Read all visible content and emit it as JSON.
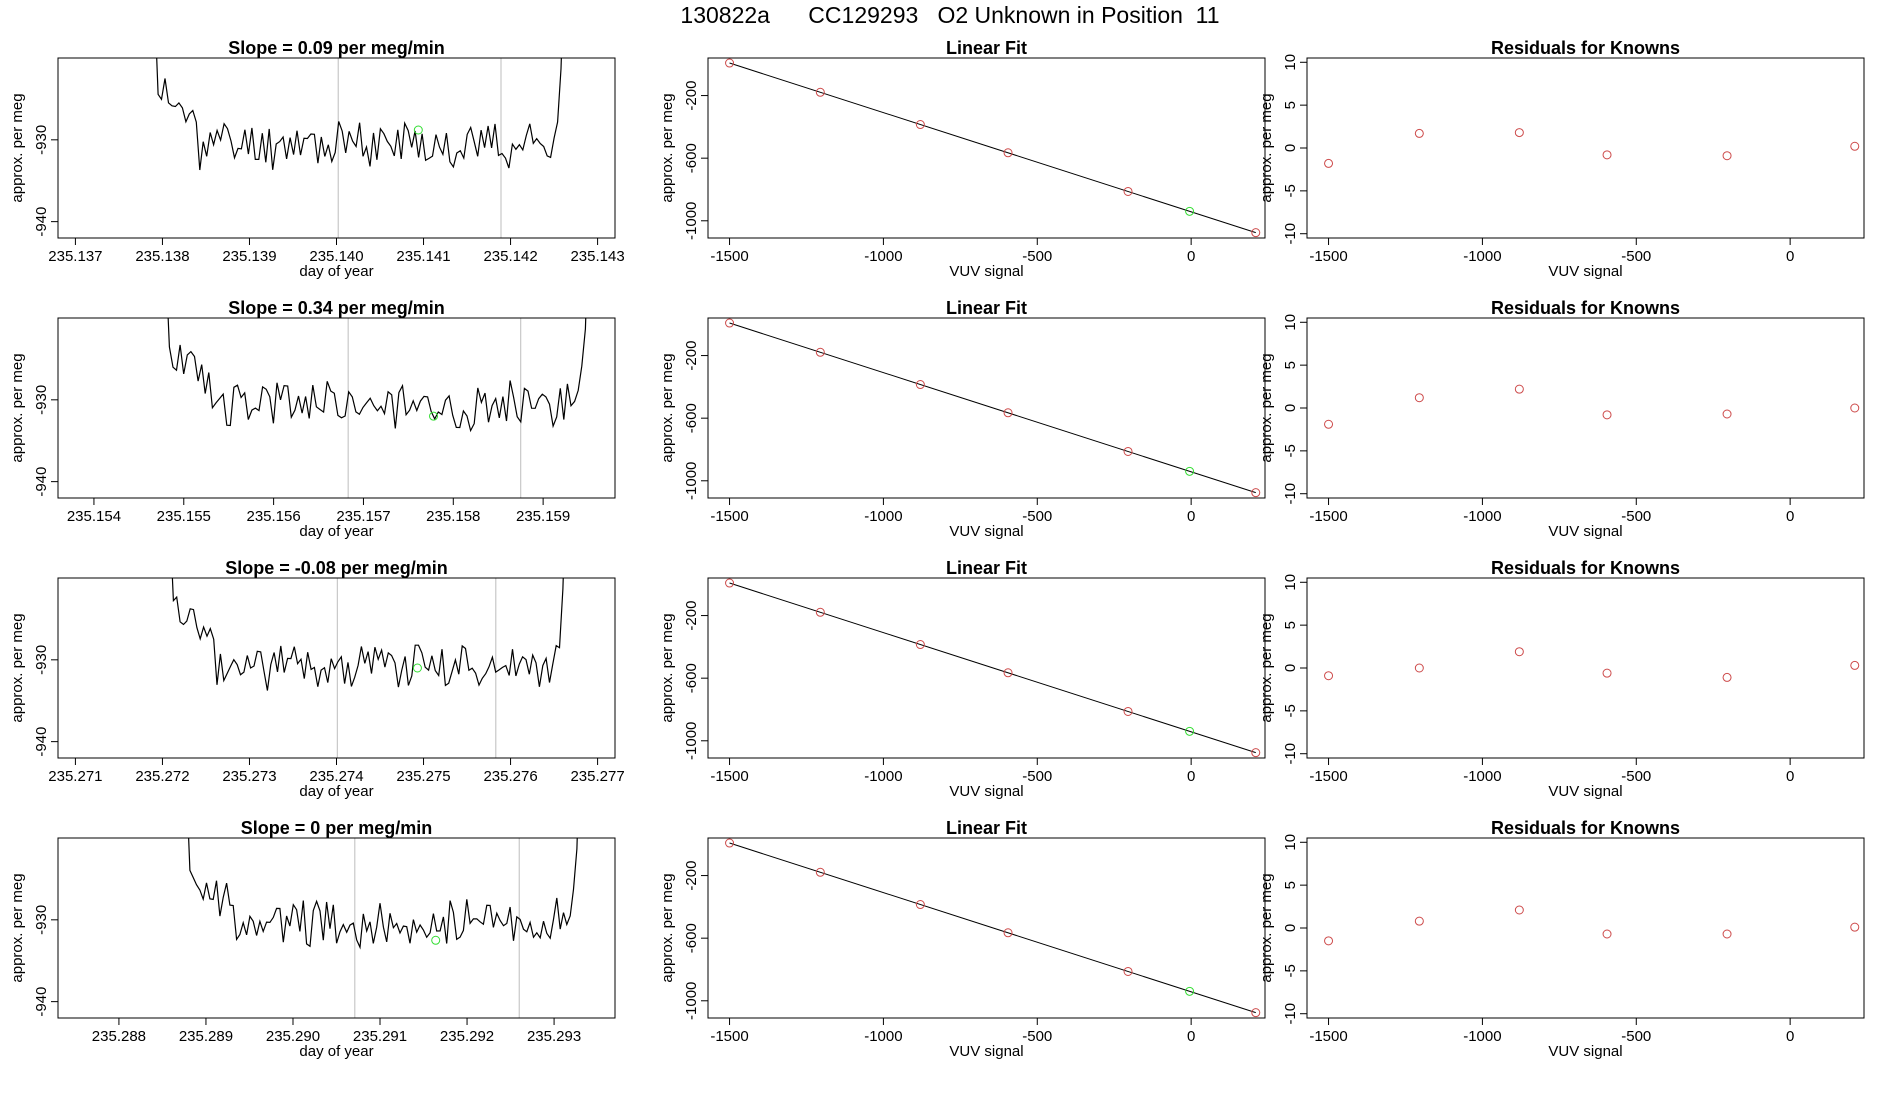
{
  "title": "130822a      CC129293   O2 Unknown in Position  11",
  "colors": {
    "line": "#000000",
    "known_point": "#cd4a4a",
    "unknown_point": "#33dd33",
    "vline": "#c8c8c8"
  },
  "chart_data": [
    {
      "type": "line",
      "panel": "time-series",
      "title": "Slope =  0.09  per meg/min",
      "xlabel": "day of year",
      "ylabel": "approx. per meg",
      "xlim": [
        235.1368,
        235.1432
      ],
      "ylim": [
        -942,
        -920
      ],
      "xticks": [
        "235.137",
        "235.138",
        "235.139",
        "235.140",
        "235.141",
        "235.142",
        "235.143"
      ],
      "xtick_values": [
        235.137,
        235.138,
        235.139,
        235.14,
        235.141,
        235.142,
        235.143
      ],
      "yticks": [
        "-930",
        "-940"
      ],
      "ytick_values": [
        -930,
        -940
      ],
      "series_start": 235.13783,
      "series_end": 235.14262,
      "trace_seed": 11,
      "vlines": [
        235.14002,
        235.14189
      ],
      "unknown_point": {
        "x": 235.14094,
        "y": -928.8
      }
    },
    {
      "type": "scatter",
      "panel": "linear-fit",
      "title": "Linear Fit",
      "xlabel": "VUV signal",
      "ylabel": "approx. per meg",
      "xlim": [
        -1570,
        240
      ],
      "ylim": [
        -1110,
        40
      ],
      "xticks": [
        "-1500",
        "-1000",
        "-500",
        "0"
      ],
      "xtick_values": [
        -1500,
        -1000,
        -500,
        0
      ],
      "yticks": [
        "-200",
        "-600",
        "-1000"
      ],
      "ytick_values": [
        -200,
        -600,
        -1000
      ],
      "known_x": [
        -1500,
        -1205,
        -880,
        -595,
        -205,
        210
      ],
      "known_y": [
        0,
        -180,
        -380,
        -560,
        -800,
        -1090
      ],
      "unknown": {
        "x": -5,
        "y": -930
      }
    },
    {
      "type": "scatter",
      "panel": "residuals",
      "title": "Residuals for Knowns",
      "xlabel": "VUV signal",
      "ylabel": "approx. per meg",
      "xlim": [
        -1570,
        240
      ],
      "ylim": [
        -10.5,
        10.5
      ],
      "xticks": [
        "-1500",
        "-1000",
        "-500",
        "0"
      ],
      "xtick_values": [
        -1500,
        -1000,
        -500,
        0
      ],
      "yticks": [
        "-10",
        "-5",
        "0",
        "5",
        "10"
      ],
      "ytick_values": [
        -10,
        -5,
        0,
        5,
        10
      ],
      "x": [
        -1500,
        -1205,
        -880,
        -595,
        -205,
        210
      ],
      "y": [
        -1.8,
        1.7,
        1.8,
        -0.8,
        -0.9,
        0.2
      ]
    },
    {
      "type": "line",
      "panel": "time-series",
      "title": "Slope =  0.34  per meg/min",
      "xlabel": "day of year",
      "ylabel": "approx. per meg",
      "xlim": [
        235.1536,
        235.1598
      ],
      "ylim": [
        -942,
        -920
      ],
      "xticks": [
        "235.154",
        "235.155",
        "235.156",
        "235.157",
        "235.158",
        "235.159"
      ],
      "xtick_values": [
        235.154,
        235.155,
        235.156,
        235.157,
        235.158,
        235.159
      ],
      "yticks": [
        "-930",
        "-940"
      ],
      "ytick_values": [
        -930,
        -940
      ],
      "series_start": 235.15472,
      "series_end": 235.15951,
      "trace_seed": 23,
      "vlines": [
        235.15683,
        235.15875
      ],
      "unknown_point": {
        "x": 235.15778,
        "y": -932
      }
    },
    {
      "type": "scatter",
      "panel": "linear-fit",
      "title": "Linear Fit",
      "xlabel": "VUV signal",
      "ylabel": "approx. per meg",
      "xlim": [
        -1570,
        240
      ],
      "ylim": [
        -1110,
        40
      ],
      "xticks": [
        "-1500",
        "-1000",
        "-500",
        "0"
      ],
      "xtick_values": [
        -1500,
        -1000,
        -500,
        0
      ],
      "yticks": [
        "-200",
        "-600",
        "-1000"
      ],
      "ytick_values": [
        -200,
        -600,
        -1000
      ],
      "known_x": [
        -1500,
        -1205,
        -880,
        -595,
        -205,
        210
      ],
      "known_y": [
        0,
        -180,
        -380,
        -560,
        -800,
        -1090
      ],
      "unknown": {
        "x": -5,
        "y": -930
      }
    },
    {
      "type": "scatter",
      "panel": "residuals",
      "title": "Residuals for Knowns",
      "xlabel": "VUV signal",
      "ylabel": "approx. per meg",
      "xlim": [
        -1570,
        240
      ],
      "ylim": [
        -10.5,
        10.5
      ],
      "xticks": [
        "-1500",
        "-1000",
        "-500",
        "0"
      ],
      "xtick_values": [
        -1500,
        -1000,
        -500,
        0
      ],
      "yticks": [
        "-10",
        "-5",
        "0",
        "5",
        "10"
      ],
      "ytick_values": [
        -10,
        -5,
        0,
        5,
        10
      ],
      "x": [
        -1500,
        -1205,
        -880,
        -595,
        -205,
        210
      ],
      "y": [
        -1.9,
        1.2,
        2.2,
        -0.8,
        -0.7,
        0.0
      ]
    },
    {
      "type": "line",
      "panel": "time-series",
      "title": "Slope =  -0.08  per meg/min",
      "xlabel": "day of year",
      "ylabel": "approx. per meg",
      "xlim": [
        235.2708,
        235.2772
      ],
      "ylim": [
        -942,
        -920
      ],
      "xticks": [
        "235.271",
        "235.272",
        "235.273",
        "235.274",
        "235.275",
        "235.276",
        "235.277"
      ],
      "xtick_values": [
        235.271,
        235.272,
        235.273,
        235.274,
        235.275,
        235.276,
        235.277
      ],
      "yticks": [
        "-930",
        "-940"
      ],
      "ytick_values": [
        -930,
        -940
      ],
      "series_start": 235.27201,
      "series_end": 235.27664,
      "trace_seed": 37,
      "vlines": [
        235.27401,
        235.27583
      ],
      "unknown_point": {
        "x": 235.27493,
        "y": -931
      }
    },
    {
      "type": "scatter",
      "panel": "linear-fit",
      "title": "Linear Fit",
      "xlabel": "VUV signal",
      "ylabel": "approx. per meg",
      "xlim": [
        -1570,
        240
      ],
      "ylim": [
        -1110,
        40
      ],
      "xticks": [
        "-1500",
        "-1000",
        "-500",
        "0"
      ],
      "xtick_values": [
        -1500,
        -1000,
        -500,
        0
      ],
      "yticks": [
        "-200",
        "-600",
        "-1000"
      ],
      "ytick_values": [
        -200,
        -600,
        -1000
      ],
      "known_x": [
        -1500,
        -1205,
        -880,
        -595,
        -205,
        210
      ],
      "known_y": [
        0,
        -180,
        -380,
        -560,
        -800,
        -1090
      ],
      "unknown": {
        "x": -5,
        "y": -930
      }
    },
    {
      "type": "scatter",
      "panel": "residuals",
      "title": "Residuals for Knowns",
      "xlabel": "VUV signal",
      "ylabel": "approx. per meg",
      "xlim": [
        -1570,
        240
      ],
      "ylim": [
        -10.5,
        10.5
      ],
      "xticks": [
        "-1500",
        "-1000",
        "-500",
        "0"
      ],
      "xtick_values": [
        -1500,
        -1000,
        -500,
        0
      ],
      "yticks": [
        "-10",
        "-5",
        "0",
        "5",
        "10"
      ],
      "ytick_values": [
        -10,
        -5,
        0,
        5,
        10
      ],
      "x": [
        -1500,
        -1205,
        -880,
        -595,
        -205,
        210
      ],
      "y": [
        -0.9,
        0.0,
        1.9,
        -0.6,
        -1.1,
        0.3
      ]
    },
    {
      "type": "line",
      "panel": "time-series",
      "title": "Slope =  0  per meg/min",
      "xlabel": "day of year",
      "ylabel": "approx. per meg",
      "xlim": [
        235.2873,
        235.2937
      ],
      "ylim": [
        -942,
        -920
      ],
      "xticks": [
        "235.288",
        "235.289",
        "235.290",
        "235.291",
        "235.292",
        "235.293"
      ],
      "xtick_values": [
        235.288,
        235.289,
        235.29,
        235.291,
        235.292,
        235.293
      ],
      "yticks": [
        "-930",
        "-940"
      ],
      "ytick_values": [
        -930,
        -940
      ],
      "series_start": 235.2887,
      "series_end": 235.2933,
      "trace_seed": 53,
      "vlines": [
        235.29071,
        235.2926
      ],
      "unknown_point": {
        "x": 235.29164,
        "y": -932.5
      }
    },
    {
      "type": "scatter",
      "panel": "linear-fit",
      "title": "Linear Fit",
      "xlabel": "VUV signal",
      "ylabel": "approx. per meg",
      "xlim": [
        -1570,
        240
      ],
      "ylim": [
        -1110,
        40
      ],
      "xticks": [
        "-1500",
        "-1000",
        "-500",
        "0"
      ],
      "xtick_values": [
        -1500,
        -1000,
        -500,
        0
      ],
      "yticks": [
        "-200",
        "-600",
        "-1000"
      ],
      "ytick_values": [
        -200,
        -600,
        -1000
      ],
      "known_x": [
        -1500,
        -1205,
        -880,
        -595,
        -205,
        210
      ],
      "known_y": [
        0,
        -180,
        -380,
        -560,
        -800,
        -1090
      ],
      "unknown": {
        "x": -5,
        "y": -930
      }
    },
    {
      "type": "scatter",
      "panel": "residuals",
      "title": "Residuals for Knowns",
      "xlabel": "VUV signal",
      "ylabel": "approx. per meg",
      "xlim": [
        -1570,
        240
      ],
      "ylim": [
        -10.5,
        10.5
      ],
      "xticks": [
        "-1500",
        "-1000",
        "-500",
        "0"
      ],
      "xtick_values": [
        -1500,
        -1000,
        -500,
        0
      ],
      "yticks": [
        "-10",
        "-5",
        "0",
        "5",
        "10"
      ],
      "ytick_values": [
        -10,
        -5,
        0,
        5,
        10
      ],
      "x": [
        -1500,
        -1205,
        -880,
        -595,
        -205,
        210
      ],
      "y": [
        -1.5,
        0.8,
        2.1,
        -0.7,
        -0.7,
        0.1
      ]
    }
  ]
}
